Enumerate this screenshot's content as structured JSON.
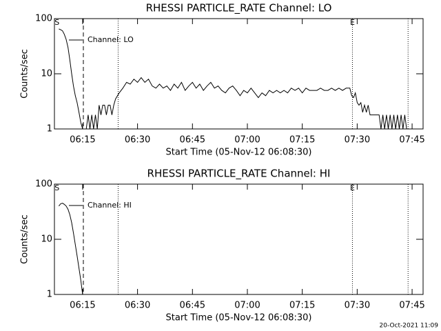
{
  "chart_data": [
    {
      "type": "line",
      "title": "RHESSI PARTICLE_RATE Channel: LO",
      "xlabel": "Start Time (05-Nov-12 06:08:30)",
      "ylabel": "Counts/sec",
      "log_y": true,
      "ylim": [
        1,
        100
      ],
      "yticks": [
        1,
        10,
        100
      ],
      "xlim": [
        7.3,
        108
      ],
      "xticks": [
        {
          "value": 15,
          "label": "06:15"
        },
        {
          "value": 30,
          "label": "06:30"
        },
        {
          "value": 45,
          "label": "06:45"
        },
        {
          "value": 60,
          "label": "07:00"
        },
        {
          "value": 75,
          "label": "07:15"
        },
        {
          "value": 90,
          "label": "07:30"
        },
        {
          "value": 105,
          "label": "07:45"
        }
      ],
      "legend": "top-left",
      "markers": [
        {
          "x": 15.2,
          "style": "dashed"
        },
        {
          "x": 24.7,
          "style": "dotted"
        },
        {
          "x": 88.7,
          "style": "dotted"
        },
        {
          "x": 103.9,
          "style": "dotted"
        }
      ],
      "annotations": [
        {
          "text": "S",
          "x": 8
        },
        {
          "text": "E",
          "x": 88.7
        }
      ],
      "series": [
        {
          "name": "Channel: LO",
          "color": "#000000",
          "x": [
            8.5,
            9,
            9.5,
            10,
            10.5,
            11,
            11.5,
            12,
            12.5,
            13,
            13.5,
            14,
            14.5,
            15,
            16,
            16.5,
            17,
            17.5,
            18,
            18.5,
            19,
            19.5,
            20,
            20.5,
            21,
            21.5,
            22,
            22.5,
            23,
            23.5,
            24,
            25,
            26,
            27,
            28,
            29,
            30,
            31,
            32,
            33,
            34,
            35,
            36,
            37,
            38,
            39,
            40,
            41,
            42,
            43,
            44,
            45,
            46,
            47,
            48,
            49,
            50,
            51,
            52,
            53,
            54,
            55,
            56,
            57,
            58,
            59,
            60,
            61,
            62,
            63,
            64,
            65,
            66,
            67,
            68,
            69,
            70,
            71,
            72,
            73,
            74,
            75,
            76,
            77,
            78,
            79,
            80,
            81,
            82,
            83,
            84,
            85,
            86,
            87,
            88,
            88.5,
            89,
            89.5,
            90,
            90.5,
            91,
            91.5,
            92,
            92.5,
            93,
            93.5,
            94,
            95,
            96,
            96.5,
            97,
            97.5,
            98,
            98.5,
            99,
            99.5,
            100,
            100.5,
            101,
            101.5,
            102,
            102.5,
            103,
            103.5
          ],
          "values": [
            65,
            63,
            60,
            52,
            42,
            30,
            18,
            10,
            6,
            4,
            3,
            2,
            1.3,
            1,
            1,
            1.8,
            1,
            1.8,
            1,
            1.8,
            1,
            2.7,
            1.8,
            2.7,
            2.7,
            1.8,
            2.7,
            2.7,
            1.8,
            2.7,
            3.5,
            4.5,
            5.5,
            7,
            6.5,
            8,
            7,
            8.5,
            7,
            8,
            6,
            5.5,
            6.5,
            5.5,
            6,
            5,
            6.5,
            5.5,
            7,
            5,
            6,
            7,
            5.5,
            6.5,
            5,
            6,
            7,
            5.5,
            6,
            5,
            4.5,
            5.5,
            6,
            5,
            4,
            5,
            4.5,
            5.5,
            4.5,
            3.7,
            4.5,
            4,
            5,
            4.5,
            5,
            4.5,
            5,
            4.5,
            5.5,
            5,
            5.5,
            4.5,
            5.5,
            5,
            5,
            5,
            5.5,
            5,
            5,
            5.5,
            5,
            5.5,
            5,
            5.5,
            5.5,
            4,
            3.7,
            4.5,
            3,
            2.7,
            3,
            2,
            2.7,
            2,
            2.7,
            1.8,
            1.8,
            1.8,
            1.8,
            1,
            1.8,
            1,
            1.8,
            1,
            1.8,
            1,
            1.8,
            1,
            1.8,
            1,
            1.8,
            1,
            1.8,
            1
          ]
        }
      ]
    },
    {
      "type": "line",
      "title": "RHESSI PARTICLE_RATE Channel: HI",
      "xlabel": "Start Time (05-Nov-12 06:08:30)",
      "ylabel": "Counts/sec",
      "log_y": true,
      "ylim": [
        1,
        100
      ],
      "yticks": [
        1,
        10,
        100
      ],
      "xlim": [
        7.3,
        108
      ],
      "xticks": [
        {
          "value": 15,
          "label": "06:15"
        },
        {
          "value": 30,
          "label": "06:30"
        },
        {
          "value": 45,
          "label": "06:45"
        },
        {
          "value": 60,
          "label": "07:00"
        },
        {
          "value": 75,
          "label": "07:15"
        },
        {
          "value": 90,
          "label": "07:30"
        },
        {
          "value": 105,
          "label": "07:45"
        }
      ],
      "legend": "top-left",
      "markers": [
        {
          "x": 15.2,
          "style": "dashed"
        },
        {
          "x": 24.7,
          "style": "dotted"
        },
        {
          "x": 88.7,
          "style": "dotted"
        },
        {
          "x": 103.9,
          "style": "dotted"
        }
      ],
      "annotations": [
        {
          "text": "S",
          "x": 8
        },
        {
          "text": "E",
          "x": 88.7
        }
      ],
      "series": [
        {
          "name": "Channel: HI",
          "color": "#000000",
          "x": [
            8.5,
            9,
            9.5,
            10,
            10.5,
            11,
            11.5,
            12,
            12.5,
            13,
            13.5,
            14,
            14.5,
            15
          ],
          "values": [
            40,
            44,
            45,
            43,
            40,
            35,
            28,
            20,
            13,
            8,
            5,
            3,
            1.8,
            1
          ]
        }
      ]
    }
  ],
  "footer": "20-Oct-2021 11:09"
}
